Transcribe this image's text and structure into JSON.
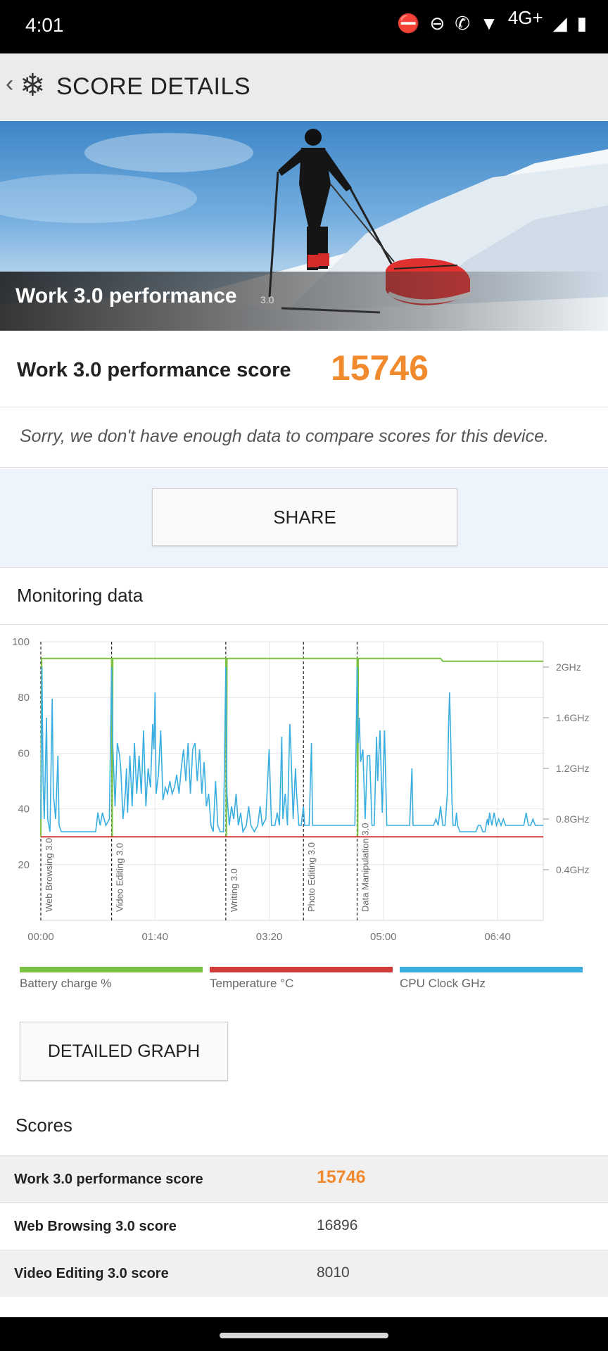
{
  "status": {
    "time": "4:01",
    "network": "4G+"
  },
  "header": {
    "title": "SCORE DETAILS"
  },
  "hero": {
    "title": "Work 3.0 performance",
    "version": "3.0"
  },
  "summary": {
    "score_label": "Work 3.0 performance score",
    "score_value": "15746",
    "compare_message": "Sorry, we don't have enough data to compare scores for this device."
  },
  "actions": {
    "share_label": "SHARE",
    "detailed_graph_label": "DETAILED GRAPH"
  },
  "monitoring": {
    "title": "Monitoring data"
  },
  "chart_data": {
    "type": "line",
    "x_ticks": [
      "00:00",
      "01:40",
      "03:20",
      "05:00",
      "06:40"
    ],
    "x_range_seconds": [
      0,
      440
    ],
    "y_left_ticks": [
      "100",
      "80",
      "60",
      "40",
      "20"
    ],
    "y_left_range": [
      0,
      100
    ],
    "y_right_ticks": [
      "2GHz",
      "1.6GHz",
      "1.2GHz",
      "0.8GHz",
      "0.4GHz"
    ],
    "y_right_range_ghz": [
      0,
      2.2
    ],
    "grid": true,
    "legend_position": "bottom",
    "sections": [
      {
        "label": "Web Browsing 3.0",
        "start_s": 0
      },
      {
        "label": "Video Editing 3.0",
        "start_s": 62
      },
      {
        "label": "Writing 3.0",
        "start_s": 162
      },
      {
        "label": "Photo Editing 3.0",
        "start_s": 230
      },
      {
        "label": "Data Manipulation 3.0",
        "start_s": 277
      }
    ],
    "series": [
      {
        "name": "Battery charge %",
        "color": "#7bc142",
        "axis": "left",
        "points": [
          [
            0,
            30
          ],
          [
            0.8,
            94
          ],
          [
            62,
            94
          ],
          [
            62.5,
            30
          ],
          [
            63,
            94
          ],
          [
            162,
            94
          ],
          [
            162.5,
            30
          ],
          [
            163,
            94
          ],
          [
            277,
            94
          ],
          [
            277.5,
            30
          ],
          [
            278,
            94
          ],
          [
            350,
            94
          ],
          [
            352,
            93
          ],
          [
            440,
            93
          ]
        ]
      },
      {
        "name": "Temperature °C",
        "color": "#d03a3a",
        "axis": "left",
        "points": [
          [
            0,
            30
          ],
          [
            440,
            30
          ]
        ]
      },
      {
        "name": "CPU Clock GHz",
        "color": "#3aaee0",
        "axis": "right",
        "points": [
          [
            0,
            0.8
          ],
          [
            1,
            2.0
          ],
          [
            2,
            1.1
          ],
          [
            3,
            0.8
          ],
          [
            5,
            1.6
          ],
          [
            6,
            0.8
          ],
          [
            8,
            0.7
          ],
          [
            10,
            1.75
          ],
          [
            11,
            1.0
          ],
          [
            13,
            0.8
          ],
          [
            15,
            1.3
          ],
          [
            16,
            0.75
          ],
          [
            18,
            0.7
          ],
          [
            20,
            0.7
          ],
          [
            25,
            0.7
          ],
          [
            30,
            0.7
          ],
          [
            35,
            0.7
          ],
          [
            40,
            0.7
          ],
          [
            45,
            0.7
          ],
          [
            48,
            0.7
          ],
          [
            50,
            0.85
          ],
          [
            52,
            0.75
          ],
          [
            54,
            0.85
          ],
          [
            57,
            0.75
          ],
          [
            60,
            0.8
          ],
          [
            62,
            2.0
          ],
          [
            63,
            1.4
          ],
          [
            65,
            0.9
          ],
          [
            67,
            1.4
          ],
          [
            69,
            1.3
          ],
          [
            70,
            1.2
          ],
          [
            72,
            0.8
          ],
          [
            74,
            1.0
          ],
          [
            75,
            1.2
          ],
          [
            76,
            0.85
          ],
          [
            78,
            1.3
          ],
          [
            80,
            0.9
          ],
          [
            82,
            1.4
          ],
          [
            84,
            1.0
          ],
          [
            86,
            1.3
          ],
          [
            88,
            1.0
          ],
          [
            90,
            1.5
          ],
          [
            92,
            0.9
          ],
          [
            94,
            1.2
          ],
          [
            96,
            1.05
          ],
          [
            98,
            1.55
          ],
          [
            99,
            1.35
          ],
          [
            100,
            1.8
          ],
          [
            101,
            1.0
          ],
          [
            103,
            1.15
          ],
          [
            105,
            1.5
          ],
          [
            107,
            0.95
          ],
          [
            109,
            1.05
          ],
          [
            111,
            1.0
          ],
          [
            113,
            1.1
          ],
          [
            115,
            1.0
          ],
          [
            117,
            1.05
          ],
          [
            119,
            1.15
          ],
          [
            121,
            1.0
          ],
          [
            123,
            1.2
          ],
          [
            125,
            1.35
          ],
          [
            127,
            1.1
          ],
          [
            129,
            1.4
          ],
          [
            131,
            1.0
          ],
          [
            133,
            1.35
          ],
          [
            135,
            1.4
          ],
          [
            137,
            1.1
          ],
          [
            139,
            1.35
          ],
          [
            141,
            1.0
          ],
          [
            143,
            1.25
          ],
          [
            145,
            0.9
          ],
          [
            147,
            1.0
          ],
          [
            149,
            0.75
          ],
          [
            151,
            0.7
          ],
          [
            153,
            1.1
          ],
          [
            155,
            0.75
          ],
          [
            157,
            0.7
          ],
          [
            160,
            0.7
          ],
          [
            162,
            2.0
          ],
          [
            163,
            1.0
          ],
          [
            165,
            0.75
          ],
          [
            167,
            0.9
          ],
          [
            169,
            0.8
          ],
          [
            171,
            1.0
          ],
          [
            173,
            0.75
          ],
          [
            175,
            0.85
          ],
          [
            177,
            0.7
          ],
          [
            180,
            0.75
          ],
          [
            182,
            0.9
          ],
          [
            184,
            0.75
          ],
          [
            187,
            0.7
          ],
          [
            190,
            0.75
          ],
          [
            192,
            0.9
          ],
          [
            194,
            0.75
          ],
          [
            197,
            0.8
          ],
          [
            200,
            1.35
          ],
          [
            202,
            0.75
          ],
          [
            205,
            0.75
          ],
          [
            207,
            0.85
          ],
          [
            209,
            0.75
          ],
          [
            211,
            1.45
          ],
          [
            212,
            0.8
          ],
          [
            214,
            1.0
          ],
          [
            216,
            0.75
          ],
          [
            218,
            1.55
          ],
          [
            219,
            1.35
          ],
          [
            221,
            0.8
          ],
          [
            223,
            1.2
          ],
          [
            224,
            1.0
          ],
          [
            226,
            0.75
          ],
          [
            228,
            0.75
          ],
          [
            230,
            0.9
          ],
          [
            231,
            0.75
          ],
          [
            233,
            0.75
          ],
          [
            235,
            0.75
          ],
          [
            237,
            1.4
          ],
          [
            238,
            0.75
          ],
          [
            240,
            0.75
          ],
          [
            245,
            0.75
          ],
          [
            250,
            0.75
          ],
          [
            255,
            0.75
          ],
          [
            260,
            0.75
          ],
          [
            265,
            0.75
          ],
          [
            270,
            0.75
          ],
          [
            275,
            0.75
          ],
          [
            277,
            2.0
          ],
          [
            278,
            1.4
          ],
          [
            279,
            1.6
          ],
          [
            280,
            1.25
          ],
          [
            282,
            1.35
          ],
          [
            284,
            0.8
          ],
          [
            286,
            1.3
          ],
          [
            288,
            1.3
          ],
          [
            290,
            0.75
          ],
          [
            292,
            0.75
          ],
          [
            294,
            1.45
          ],
          [
            295,
            1.1
          ],
          [
            297,
            1.5
          ],
          [
            299,
            0.85
          ],
          [
            301,
            1.5
          ],
          [
            303,
            0.75
          ],
          [
            305,
            0.75
          ],
          [
            307,
            0.75
          ],
          [
            309,
            0.75
          ],
          [
            311,
            0.75
          ],
          [
            313,
            0.75
          ],
          [
            315,
            0.75
          ],
          [
            317,
            0.75
          ],
          [
            319,
            0.75
          ],
          [
            321,
            0.75
          ],
          [
            323,
            0.75
          ],
          [
            325,
            1.2
          ],
          [
            326,
            0.75
          ],
          [
            328,
            0.75
          ],
          [
            330,
            0.75
          ],
          [
            332,
            0.75
          ],
          [
            334,
            0.75
          ],
          [
            336,
            0.75
          ],
          [
            338,
            0.75
          ],
          [
            340,
            0.75
          ],
          [
            342,
            0.75
          ],
          [
            344,
            0.75
          ],
          [
            346,
            0.8
          ],
          [
            348,
            0.75
          ],
          [
            350,
            0.9
          ],
          [
            352,
            0.75
          ],
          [
            354,
            0.75
          ],
          [
            356,
            1.0
          ],
          [
            357,
            1.5
          ],
          [
            358,
            1.8
          ],
          [
            359,
            1.4
          ],
          [
            360,
            0.95
          ],
          [
            361,
            0.75
          ],
          [
            363,
            0.75
          ],
          [
            364,
            0.85
          ],
          [
            365,
            0.75
          ],
          [
            367,
            0.7
          ],
          [
            369,
            0.7
          ],
          [
            371,
            0.7
          ],
          [
            373,
            0.7
          ],
          [
            375,
            0.7
          ],
          [
            377,
            0.7
          ],
          [
            379,
            0.7
          ],
          [
            381,
            0.7
          ],
          [
            383,
            0.75
          ],
          [
            385,
            0.75
          ],
          [
            387,
            0.7
          ],
          [
            389,
            0.7
          ],
          [
            391,
            0.8
          ],
          [
            392,
            0.75
          ],
          [
            393,
            0.85
          ],
          [
            395,
            0.75
          ],
          [
            397,
            0.85
          ],
          [
            399,
            0.75
          ],
          [
            401,
            0.8
          ],
          [
            403,
            0.75
          ],
          [
            405,
            0.8
          ],
          [
            407,
            0.75
          ],
          [
            409,
            0.75
          ],
          [
            411,
            0.75
          ],
          [
            413,
            0.75
          ],
          [
            415,
            0.75
          ],
          [
            417,
            0.75
          ],
          [
            419,
            0.75
          ],
          [
            421,
            0.75
          ],
          [
            423,
            0.75
          ],
          [
            425,
            0.85
          ],
          [
            427,
            0.75
          ],
          [
            429,
            0.75
          ],
          [
            431,
            0.8
          ],
          [
            433,
            0.75
          ],
          [
            435,
            0.75
          ],
          [
            437,
            0.75
          ],
          [
            440,
            0.75
          ]
        ]
      }
    ]
  },
  "legend": [
    {
      "label": "Battery charge %",
      "color": "#7bc142"
    },
    {
      "label": "Temperature °C",
      "color": "#d03a3a"
    },
    {
      "label": "CPU Clock GHz",
      "color": "#3aaee0"
    }
  ],
  "scores": {
    "title": "Scores",
    "rows": [
      {
        "name": "Work 3.0 performance score",
        "value": "15746",
        "highlight": true
      },
      {
        "name": "Web Browsing 3.0 score",
        "value": "16896",
        "highlight": false
      },
      {
        "name": "Video Editing 3.0 score",
        "value": "8010",
        "highlight": false
      }
    ]
  }
}
